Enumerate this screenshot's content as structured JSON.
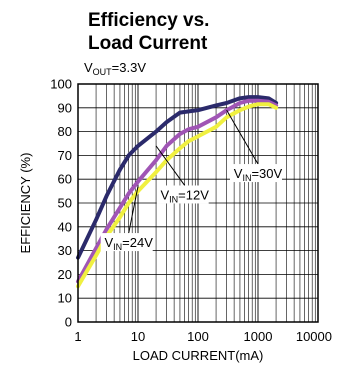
{
  "chart_data": {
    "type": "line",
    "title_lines": [
      "Efficiency vs.",
      "Load Current"
    ],
    "condition": {
      "prefix": "V",
      "sub": "OUT",
      "suffix": "=3.3V"
    },
    "xlabel": "LOAD CURRENT(mA)",
    "ylabel": "EFFICIENCY (%)",
    "x_scale": "log",
    "xlim": [
      1,
      10000
    ],
    "ylim": [
      0,
      100
    ],
    "grid": true,
    "x_ticks": [
      1,
      10,
      100,
      1000,
      10000
    ],
    "x_tick_labels": [
      "1",
      "10",
      "100",
      "1000",
      "10000"
    ],
    "y_ticks": [
      0,
      10,
      20,
      30,
      40,
      50,
      60,
      70,
      80,
      90,
      100
    ],
    "y_tick_labels": [
      "0",
      "10",
      "20",
      "30",
      "40",
      "50",
      "60",
      "70",
      "80",
      "90",
      "100"
    ],
    "series": [
      {
        "name": "VIN=30V",
        "color": "#2b2a6b",
        "x": [
          1,
          2,
          3,
          5,
          7,
          10,
          20,
          30,
          50,
          70,
          100,
          200,
          300,
          500,
          700,
          1000,
          1500,
          2000
        ],
        "y": [
          27,
          43,
          53,
          64,
          70,
          74,
          80,
          84,
          88,
          88.5,
          89,
          91,
          92,
          94,
          94.5,
          94.5,
          94,
          92
        ]
      },
      {
        "name": "VIN=12V",
        "color": "#a055b5",
        "x": [
          1,
          2,
          3,
          5,
          7,
          10,
          20,
          30,
          50,
          70,
          100,
          200,
          300,
          500,
          700,
          1000,
          1500,
          2000
        ],
        "y": [
          17,
          31,
          39,
          48,
          54,
          59,
          68,
          74,
          79,
          81,
          82,
          86,
          89,
          92,
          93,
          93,
          92.5,
          91
        ]
      },
      {
        "name": "VIN=24V",
        "color": "#f0f040",
        "x": [
          1,
          2,
          3,
          5,
          7,
          10,
          20,
          30,
          50,
          70,
          100,
          200,
          300,
          500,
          700,
          1000,
          1500,
          2000
        ],
        "y": [
          15,
          28,
          36,
          44,
          50,
          55,
          63,
          68,
          73,
          76,
          78,
          82,
          86,
          89,
          90.5,
          91.5,
          91.5,
          90
        ]
      }
    ],
    "annotations": [
      {
        "prefix": "V",
        "sub": "IN",
        "suffix": "=30V",
        "at": {
          "x": 1000,
          "y": 63
        }
      },
      {
        "prefix": "V",
        "sub": "IN",
        "suffix": "=12V",
        "at": {
          "x": 60,
          "y": 54
        }
      },
      {
        "prefix": "V",
        "sub": "IN",
        "suffix": "=24V",
        "at": {
          "x": 7,
          "y": 34
        }
      }
    ]
  }
}
